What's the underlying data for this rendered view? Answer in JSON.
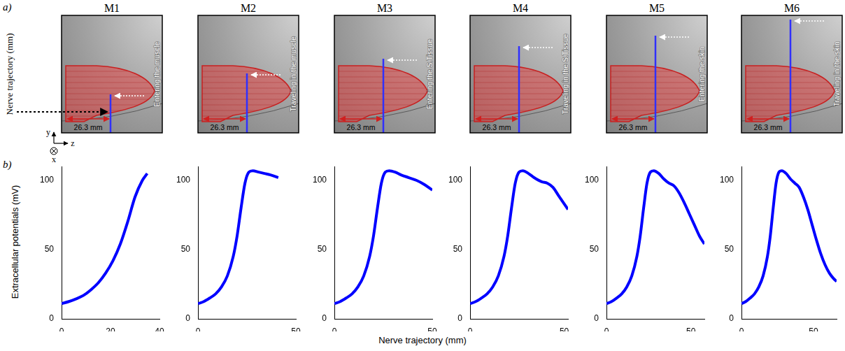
{
  "panel_a": {
    "label": "a)",
    "y_label": "Nerve trajectory (mm)",
    "axes": {
      "up": "y",
      "right": "z",
      "into": "x"
    },
    "panels": [
      {
        "title": "M1",
        "annotation": "Entering the muscle",
        "distance": "26.3 mm"
      },
      {
        "title": "M2",
        "annotation": "Traveling in the muscle",
        "distance": "26.3 mm"
      },
      {
        "title": "M3",
        "annotation": "Entering the S.Tissue",
        "distance": "26.3 mm"
      },
      {
        "title": "M4",
        "annotation": "Traveling in the S.Tissue",
        "distance": "26.3 mm"
      },
      {
        "title": "M5",
        "annotation": "Entering the skin",
        "distance": "26.3 mm"
      },
      {
        "title": "M6",
        "annotation": "Traveling in the skin",
        "distance": "26.3 mm"
      }
    ]
  },
  "panel_b": {
    "label": "b)",
    "x_label": "Nerve trajectory (mm)",
    "y_label": "Extracellular potentials (mV)"
  },
  "chart_data": [
    {
      "type": "line",
      "color": "#0000ff",
      "grid": false,
      "x": [
        0,
        3,
        6,
        9,
        12,
        15,
        18,
        21,
        24,
        27,
        30,
        33,
        35
      ],
      "values": [
        11,
        12.5,
        14.5,
        17,
        21,
        26,
        33,
        42,
        54,
        70,
        88,
        100,
        105
      ],
      "xlim": [
        0,
        40
      ],
      "xticks": [
        0,
        20,
        40
      ],
      "ylim": [
        0,
        110
      ],
      "yticks": [
        0,
        50,
        100
      ]
    },
    {
      "type": "line",
      "color": "#0000ff",
      "grid": false,
      "x": [
        0,
        3,
        6,
        9,
        12,
        15,
        18,
        20,
        22,
        24,
        26,
        28,
        31,
        34,
        37,
        41
      ],
      "values": [
        11,
        12.5,
        15,
        18,
        23,
        31,
        45,
        60,
        80,
        98,
        106,
        107,
        106,
        105,
        104,
        102
      ],
      "xlim": [
        0,
        50
      ],
      "xticks": [
        0,
        50
      ],
      "ylim": [
        0,
        110
      ],
      "yticks": [
        0,
        50,
        100
      ]
    },
    {
      "type": "line",
      "color": "#0000ff",
      "grid": false,
      "x": [
        0,
        3,
        6,
        9,
        12,
        15,
        18,
        20,
        22,
        24,
        26,
        28,
        31,
        34,
        38,
        42,
        46,
        50
      ],
      "values": [
        11,
        12.5,
        15,
        18,
        23,
        31,
        45,
        60,
        80,
        98,
        106,
        107,
        106,
        104,
        102,
        100,
        97,
        93
      ],
      "xlim": [
        0,
        50
      ],
      "xticks": [
        0,
        50
      ],
      "ylim": [
        0,
        110
      ],
      "yticks": [
        0,
        50,
        100
      ]
    },
    {
      "type": "line",
      "color": "#0000ff",
      "grid": false,
      "x": [
        0,
        3,
        6,
        9,
        12,
        15,
        18,
        20,
        22,
        24,
        26,
        28,
        31,
        34,
        38,
        41,
        44,
        47,
        50,
        52
      ],
      "values": [
        11,
        12.5,
        15,
        18,
        23,
        31,
        45,
        60,
        80,
        98,
        106,
        107,
        105,
        102,
        99,
        98,
        95,
        89,
        83,
        79
      ],
      "xlim": [
        0,
        52
      ],
      "xticks": [
        0,
        50
      ],
      "ylim": [
        0,
        110
      ],
      "yticks": [
        0,
        50,
        100
      ]
    },
    {
      "type": "line",
      "color": "#0000ff",
      "grid": false,
      "x": [
        0,
        3,
        6,
        9,
        12,
        15,
        18,
        20,
        22,
        24,
        26,
        28,
        31,
        34,
        37,
        40,
        43,
        46,
        49,
        52,
        55,
        58
      ],
      "values": [
        11,
        12.5,
        15,
        18,
        23,
        31,
        45,
        60,
        80,
        98,
        106,
        107,
        105,
        101,
        98,
        96,
        91,
        84,
        76,
        68,
        60,
        54
      ],
      "xlim": [
        0,
        58
      ],
      "xticks": [
        0,
        50
      ],
      "ylim": [
        0,
        110
      ],
      "yticks": [
        0,
        50,
        100
      ]
    },
    {
      "type": "line",
      "color": "#0000ff",
      "grid": false,
      "x": [
        0,
        3,
        6,
        9,
        12,
        15,
        18,
        20,
        22,
        24,
        26,
        28,
        31,
        34,
        37,
        40,
        43,
        46,
        49,
        52,
        55,
        58,
        61,
        64,
        66
      ],
      "values": [
        11,
        12.5,
        15,
        18,
        23,
        31,
        45,
        60,
        80,
        98,
        106,
        107,
        105,
        101,
        98,
        95,
        88,
        79,
        68,
        57,
        47,
        39,
        33,
        29,
        27
      ],
      "xlim": [
        0,
        66
      ],
      "xticks": [
        0,
        50
      ],
      "ylim": [
        0,
        110
      ],
      "yticks": [
        0,
        50,
        100
      ]
    }
  ]
}
